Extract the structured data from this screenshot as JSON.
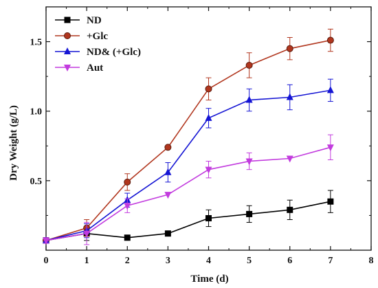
{
  "chart_data": {
    "type": "line",
    "title": "",
    "xlabel": "Time (d)",
    "ylabel": "Dry Weight (g/L)",
    "xlim": [
      0,
      8
    ],
    "ylim": [
      0,
      1.75
    ],
    "xticks": [
      "0",
      "1",
      "2",
      "3",
      "4",
      "5",
      "6",
      "7",
      "8"
    ],
    "yticks": [
      "0.5",
      "1.0",
      "1.5"
    ],
    "ytick_values": [
      0.5,
      1.0,
      1.5
    ],
    "grid": false,
    "legend_position": "top-left",
    "x": [
      0,
      1,
      2,
      3,
      4,
      5,
      6,
      7
    ],
    "series": [
      {
        "name": "ND",
        "color": "#000000",
        "marker": "square",
        "values": [
          0.07,
          0.12,
          0.09,
          0.12,
          0.23,
          0.26,
          0.29,
          0.35
        ],
        "errors": [
          0.02,
          0.05,
          0.0,
          0.0,
          0.06,
          0.06,
          0.07,
          0.08
        ]
      },
      {
        "name": "+Glc",
        "color": "#b1361e",
        "marker": "circle",
        "values": [
          0.07,
          0.16,
          0.49,
          0.74,
          1.16,
          1.33,
          1.45,
          1.51
        ],
        "errors": [
          0.02,
          0.06,
          0.06,
          0.0,
          0.08,
          0.09,
          0.08,
          0.08
        ]
      },
      {
        "name": "ND& (+Glc)",
        "color": "#1515d4",
        "marker": "triangle-up",
        "values": [
          0.07,
          0.14,
          0.36,
          0.56,
          0.95,
          1.08,
          1.1,
          1.15
        ],
        "errors": [
          0.02,
          0.05,
          0.05,
          0.07,
          0.07,
          0.08,
          0.09,
          0.08
        ]
      },
      {
        "name": "Aut",
        "color": "#c23bde",
        "marker": "triangle-down",
        "values": [
          0.07,
          0.12,
          0.32,
          0.4,
          0.58,
          0.64,
          0.66,
          0.74
        ],
        "errors": [
          0.02,
          0.08,
          0.05,
          0.0,
          0.06,
          0.06,
          0.0,
          0.09
        ]
      }
    ]
  }
}
